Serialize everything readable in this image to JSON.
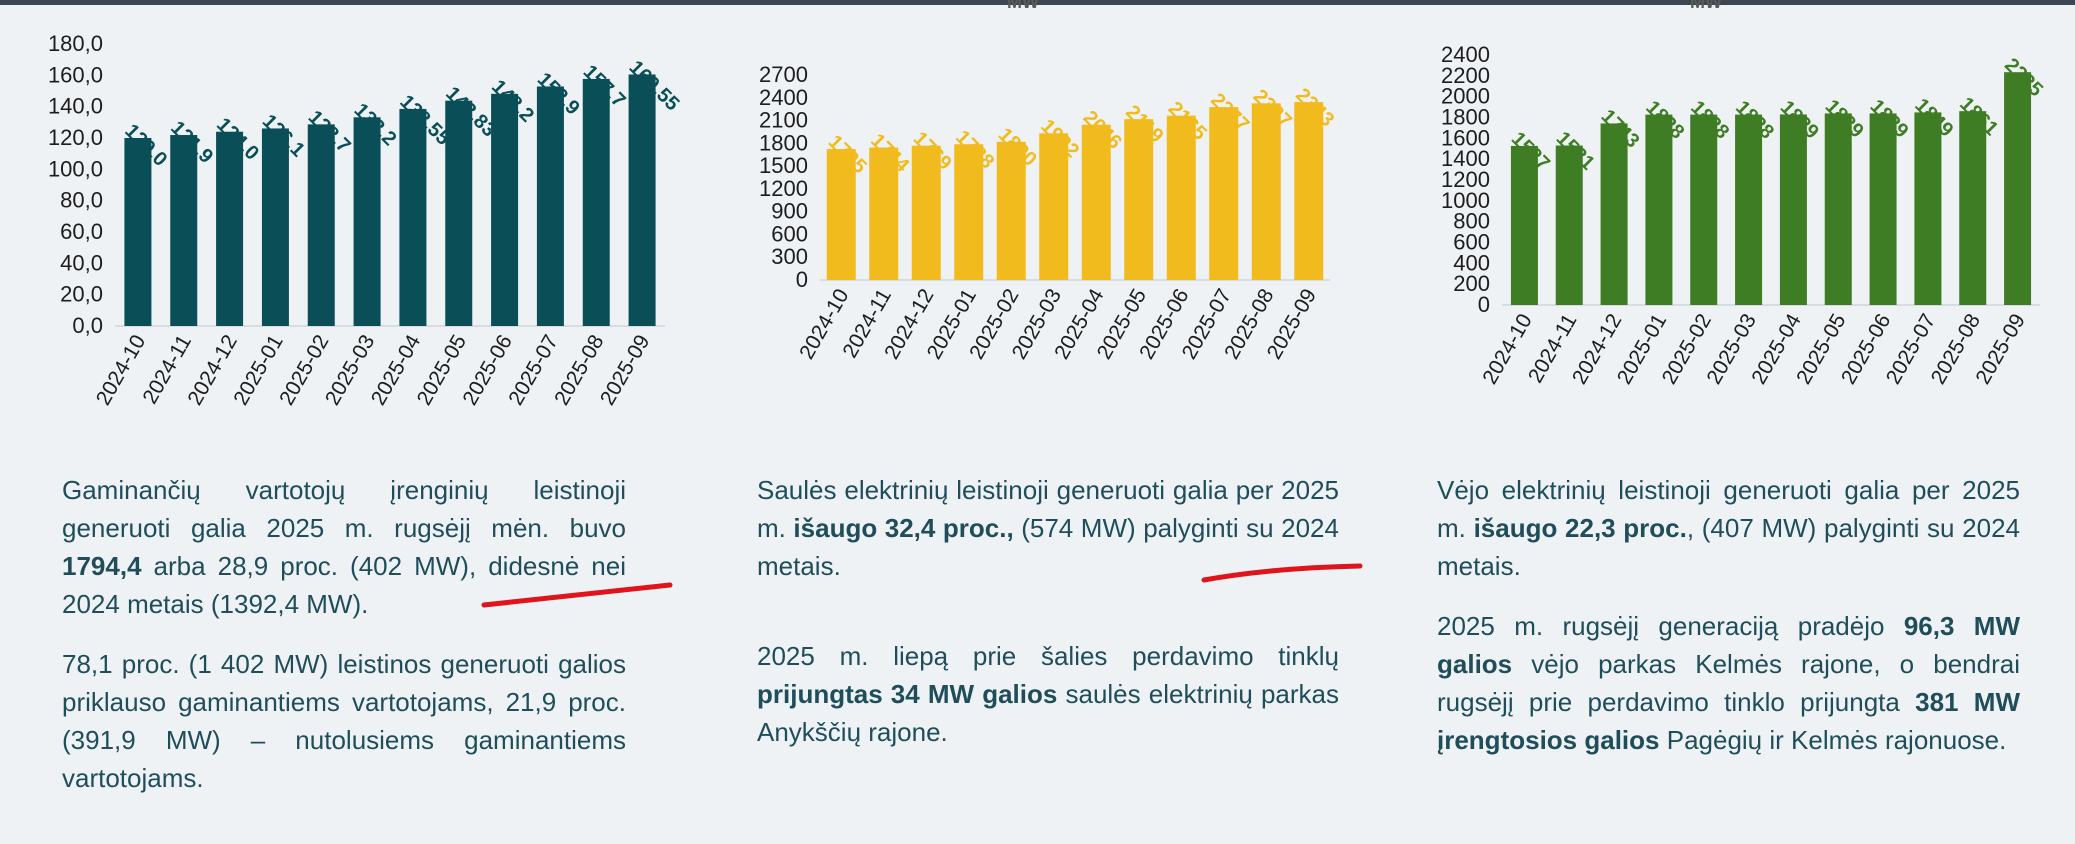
{
  "colors": {
    "consumers": "#0a4f58",
    "solar": "#f2bb1d",
    "wind": "#3f7d24",
    "text": "#1f4e5a",
    "highlight": "#e0141b"
  },
  "header_fragments": {
    "solar": "MW",
    "wind": "MW"
  },
  "chart_data": [
    {
      "type": "bar",
      "categories": [
        "2024-10",
        "2024-11",
        "2024-12",
        "2025-01",
        "2025-02",
        "2025-03",
        "2025-04",
        "2025-05",
        "2025-06",
        "2025-07",
        "2025-08",
        "2025-09"
      ],
      "values": [
        120.0,
        121.9,
        124.0,
        126.1,
        128.7,
        133.2,
        138.55,
        143.83,
        148.2,
        152.9,
        157.7,
        160.55
      ],
      "data_labels": [
        "120,0",
        "121,9",
        "124,0",
        "126,1",
        "128,7",
        "133,2",
        "138,55",
        "143,83",
        "148,2",
        "152,9",
        "157,7",
        "160,55"
      ],
      "yticks": [
        "0,0",
        "20,0",
        "40,0",
        "60,0",
        "80,0",
        "100,0",
        "120,0",
        "140,0",
        "160,0",
        "180,0"
      ],
      "ylim": [
        0,
        180
      ],
      "color": "#0a4f58"
    },
    {
      "type": "bar",
      "categories": [
        "2024-10",
        "2024-11",
        "2024-12",
        "2025-01",
        "2025-02",
        "2025-03",
        "2025-04",
        "2025-05",
        "2025-06",
        "2025-07",
        "2025-08",
        "2025-09"
      ],
      "values": [
        1725,
        1744,
        1769,
        1788,
        1820,
        1932,
        2046,
        2119,
        2165,
        2277,
        2327,
        2343
      ],
      "data_labels": [
        "1725",
        "1744",
        "1769",
        "1788",
        "1820",
        "1932",
        "2046",
        "2119",
        "2165",
        "2277",
        "2327",
        "2343"
      ],
      "yticks": [
        "0",
        "300",
        "600",
        "900",
        "1200",
        "1500",
        "1800",
        "2100",
        "2400",
        "2700"
      ],
      "ylim": [
        0,
        2700
      ],
      "color": "#f2bb1d"
    },
    {
      "type": "bar",
      "categories": [
        "2024-10",
        "2024-11",
        "2024-12",
        "2025-01",
        "2025-02",
        "2025-03",
        "2025-04",
        "2025-05",
        "2025-06",
        "2025-07",
        "2025-08",
        "2025-09"
      ],
      "values": [
        1527,
        1531,
        1743,
        1828,
        1828,
        1828,
        1829,
        1839,
        1839,
        1849,
        1861,
        2235
      ],
      "data_labels": [
        "1527",
        "1531",
        "1743",
        "1828",
        "1828",
        "1828",
        "1829",
        "1839",
        "1839",
        "1849",
        "1861",
        "2235"
      ],
      "yticks": [
        "0",
        "200",
        "400",
        "600",
        "800",
        "1000",
        "1200",
        "1400",
        "1600",
        "1800",
        "2000",
        "2200",
        "2400"
      ],
      "ylim": [
        0,
        2400
      ],
      "color": "#3f7d24"
    }
  ],
  "texts": {
    "consumers": {
      "p1_a": "Gaminančių vartotojų įrenginių leistinoji generuoti galia 2025 m. rugsėjį mėn. buvo ",
      "p1_b": "1794,4",
      "p1_c": " arba 28,9 proc. (402 MW), didesnė nei 2024 metais (1392,4 MW).",
      "p2": "78,1 proc. (1 402 MW) leistinos generuoti galios priklauso gaminantiems vartotojams, 21,9 proc. (391,9 MW) – nutolusiems gaminantiems vartotojams."
    },
    "solar": {
      "p1_a": "Saulės elektrinių leistinoji generuoti galia per 2025 m. ",
      "p1_b": "išaugo 32,4 proc.,",
      "p1_c": " (574 MW) palyginti su 2024 metais.",
      "p2_a": "2025 m. liepą prie šalies perdavimo tinklų ",
      "p2_b": "prijungtas 34 MW galios",
      "p2_c": " saulės elektrinių parkas Anykščių rajone."
    },
    "wind": {
      "p1_a": "Vėjo elektrinių leistinoji generuoti galia per 2025 m. ",
      "p1_b": "išaugo 22,3 proc.",
      "p1_c": ", (407 MW) palyginti su 2024 metais.",
      "p2_a": "2025 m. rugsėjį generaciją pradėjo ",
      "p2_b": "96,3 MW galios",
      "p2_c": " vėjo parkas Kelmės rajone, o bendrai rugsėjį prie perdavimo tinklo prijungta ",
      "p2_d": "381 MW įrengtosios galios",
      "p2_e": " Pagėgių ir Kelmės rajonuose."
    }
  }
}
